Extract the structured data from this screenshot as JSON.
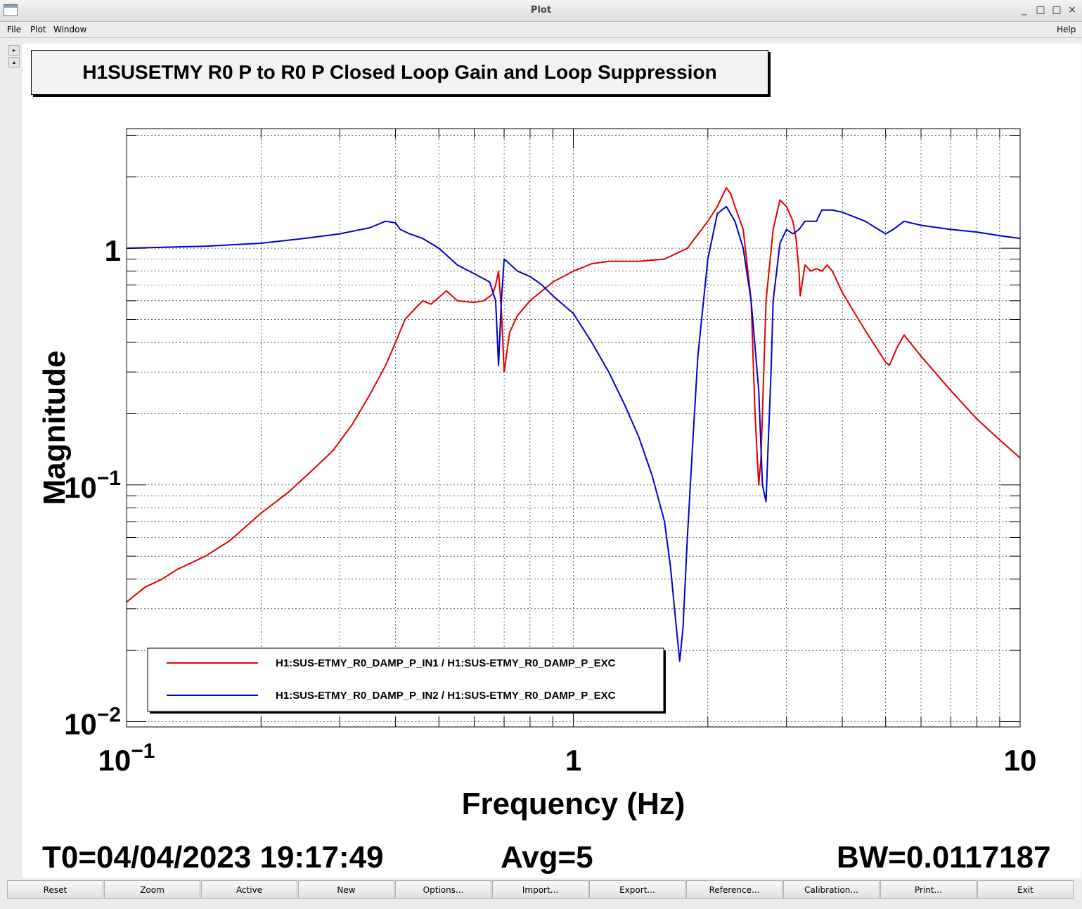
{
  "window": {
    "title": "Plot",
    "controls": [
      "_",
      "□",
      "×"
    ]
  },
  "menu": {
    "file": "File",
    "plot": "Plot",
    "window": "Window",
    "help": "Help"
  },
  "side_buttons": [
    "▸",
    "▴"
  ],
  "colors": {
    "series_in1": "#e00000",
    "series_in2": "#0000d0",
    "grid": "#000000"
  },
  "chart_data": {
    "type": "line",
    "title": "H1SUSETMY R0 P to R0 P Closed Loop Gain and Loop Suppression",
    "xlabel": "Frequency (Hz)",
    "ylabel": "Magnitude",
    "xscale": "log",
    "yscale": "log",
    "xlim": [
      0.1,
      10
    ],
    "ylim": [
      0.0095,
      3.2
    ],
    "grid": true,
    "legend_position": "bottom-left",
    "x_ticks": [
      {
        "value": 0.1,
        "base": "10",
        "exp": "−1"
      },
      {
        "value": 1,
        "base": "1",
        "exp": ""
      },
      {
        "value": 10,
        "base": "10",
        "exp": ""
      }
    ],
    "y_ticks": [
      {
        "value": 0.01,
        "base": "10",
        "exp": "−2"
      },
      {
        "value": 0.1,
        "base": "10",
        "exp": "−1"
      },
      {
        "value": 1,
        "base": "1",
        "exp": ""
      }
    ],
    "series": [
      {
        "name": "H1:SUS-ETMY_R0_DAMP_P_IN1 / H1:SUS-ETMY_R0_DAMP_P_EXC",
        "color": "#e00000",
        "x": [
          0.1,
          0.11,
          0.12,
          0.13,
          0.15,
          0.17,
          0.2,
          0.23,
          0.26,
          0.29,
          0.32,
          0.35,
          0.38,
          0.4,
          0.42,
          0.44,
          0.46,
          0.48,
          0.5,
          0.52,
          0.55,
          0.6,
          0.63,
          0.66,
          0.67,
          0.68,
          0.69,
          0.7,
          0.72,
          0.75,
          0.8,
          0.9,
          1.0,
          1.1,
          1.2,
          1.4,
          1.6,
          1.8,
          2.0,
          2.1,
          2.2,
          2.25,
          2.3,
          2.4,
          2.5,
          2.55,
          2.6,
          2.63,
          2.66,
          2.7,
          2.8,
          2.9,
          3.0,
          3.1,
          3.15,
          3.2,
          3.22,
          3.3,
          3.4,
          3.5,
          3.6,
          3.7,
          3.8,
          4.0,
          4.5,
          5.0,
          5.1,
          5.3,
          5.5,
          6.0,
          7.0,
          8.0,
          9.0,
          10.0
        ],
        "y": [
          0.032,
          0.037,
          0.04,
          0.044,
          0.05,
          0.058,
          0.076,
          0.093,
          0.115,
          0.14,
          0.18,
          0.24,
          0.32,
          0.4,
          0.5,
          0.55,
          0.6,
          0.58,
          0.62,
          0.66,
          0.6,
          0.59,
          0.6,
          0.64,
          0.7,
          0.8,
          0.55,
          0.3,
          0.44,
          0.52,
          0.6,
          0.72,
          0.8,
          0.86,
          0.88,
          0.88,
          0.9,
          1.0,
          1.3,
          1.5,
          1.8,
          1.7,
          1.5,
          1.2,
          0.6,
          0.2,
          0.1,
          0.13,
          0.25,
          0.6,
          1.2,
          1.6,
          1.5,
          1.3,
          1.1,
          0.8,
          0.63,
          0.85,
          0.8,
          0.82,
          0.8,
          0.85,
          0.8,
          0.65,
          0.45,
          0.33,
          0.32,
          0.38,
          0.43,
          0.35,
          0.25,
          0.19,
          0.155,
          0.13
        ]
      },
      {
        "name": "H1:SUS-ETMY_R0_DAMP_P_IN2 / H1:SUS-ETMY_R0_DAMP_P_EXC",
        "color": "#0000d0",
        "x": [
          0.1,
          0.15,
          0.2,
          0.25,
          0.3,
          0.35,
          0.38,
          0.4,
          0.41,
          0.43,
          0.46,
          0.5,
          0.55,
          0.6,
          0.65,
          0.67,
          0.68,
          0.69,
          0.7,
          0.71,
          0.75,
          0.8,
          0.85,
          0.9,
          1.0,
          1.1,
          1.2,
          1.3,
          1.4,
          1.5,
          1.6,
          1.65,
          1.7,
          1.73,
          1.76,
          1.8,
          1.85,
          1.9,
          2.0,
          2.1,
          2.2,
          2.3,
          2.4,
          2.5,
          2.6,
          2.65,
          2.7,
          2.73,
          2.77,
          2.8,
          2.9,
          3.0,
          3.1,
          3.2,
          3.3,
          3.5,
          3.6,
          3.8,
          4.0,
          4.5,
          5.0,
          5.2,
          5.5,
          6.0,
          7.0,
          8.0,
          9.0,
          10.0
        ],
        "y": [
          1.0,
          1.02,
          1.05,
          1.1,
          1.15,
          1.22,
          1.3,
          1.28,
          1.2,
          1.15,
          1.1,
          1.0,
          0.85,
          0.78,
          0.72,
          0.6,
          0.32,
          0.6,
          0.9,
          0.88,
          0.8,
          0.76,
          0.7,
          0.63,
          0.53,
          0.4,
          0.3,
          0.22,
          0.16,
          0.11,
          0.07,
          0.045,
          0.025,
          0.018,
          0.025,
          0.06,
          0.15,
          0.35,
          0.9,
          1.4,
          1.5,
          1.3,
          1.0,
          0.6,
          0.25,
          0.1,
          0.085,
          0.15,
          0.3,
          0.6,
          1.05,
          1.2,
          1.15,
          1.2,
          1.3,
          1.3,
          1.45,
          1.45,
          1.42,
          1.3,
          1.15,
          1.2,
          1.3,
          1.25,
          1.2,
          1.17,
          1.13,
          1.1
        ]
      }
    ]
  },
  "footer": {
    "t0": "T0=04/04/2023 19:17:49",
    "avg": "Avg=5",
    "bw": "BW=0.0117187"
  },
  "buttons": [
    "Reset",
    "Zoom",
    "Active",
    "New",
    "Options...",
    "Import...",
    "Export...",
    "Reference...",
    "Calibration...",
    "Print...",
    "Exit"
  ]
}
